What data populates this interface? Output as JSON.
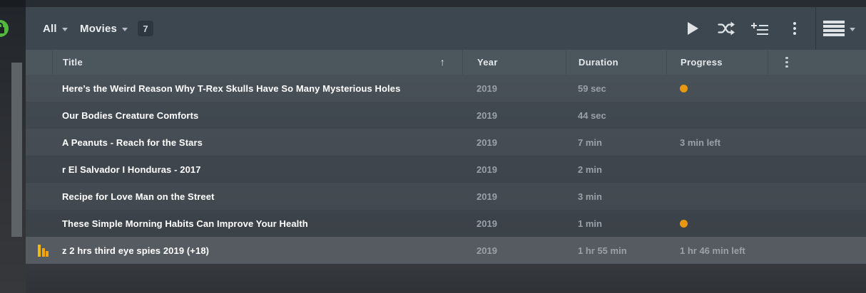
{
  "colors": {
    "accent_orange": "#e6980f",
    "plex_green": "#54b83f",
    "toolbar_bg": "#3d4750",
    "header_bg": "#4c565d"
  },
  "topbar": {
    "library_filter": {
      "label": "All"
    },
    "type_filter": {
      "label": "Movies"
    },
    "count_badge": "7",
    "icons": [
      "play-icon",
      "shuffle-icon",
      "add-to-playlist-icon",
      "more-options-icon",
      "view-list-icon"
    ]
  },
  "table": {
    "sort_arrow": "↑",
    "columns": [
      {
        "label": "Title",
        "sorted": "ascending"
      },
      {
        "label": "Year"
      },
      {
        "label": "Duration"
      },
      {
        "label": "Progress"
      },
      {
        "label": "",
        "icon": "more-options-icon"
      }
    ],
    "rows": [
      {
        "title": "Here’s the Weird Reason Why T-Rex Skulls Have So Many Mysterious Holes",
        "year": "2019",
        "duration": "59 sec",
        "progress_text": "",
        "progress_dot": true,
        "now_playing": false
      },
      {
        "title": "Our Bodies Creature Comforts",
        "year": "2019",
        "duration": "44 sec",
        "progress_text": "",
        "progress_dot": false,
        "now_playing": false
      },
      {
        "title": "A Peanuts - Reach for the Stars",
        "year": "2019",
        "duration": "7 min",
        "progress_text": "3 min left",
        "progress_dot": false,
        "now_playing": false
      },
      {
        "title": "r El Salvador I Honduras - 2017",
        "year": "2019",
        "duration": "2 min",
        "progress_text": "",
        "progress_dot": false,
        "now_playing": false
      },
      {
        "title": "Recipe for Love Man on the Street",
        "year": "2019",
        "duration": "3 min",
        "progress_text": "",
        "progress_dot": false,
        "now_playing": false
      },
      {
        "title": "These Simple Morning Habits Can Improve Your Health",
        "year": "2019",
        "duration": "1 min",
        "progress_text": "",
        "progress_dot": true,
        "now_playing": false
      },
      {
        "title": "z 2 hrs third eye spies 2019 (+18)",
        "year": "2019",
        "duration": "1 hr 55 min",
        "progress_text": "1 hr 46 min left",
        "progress_dot": false,
        "now_playing": true
      }
    ]
  }
}
